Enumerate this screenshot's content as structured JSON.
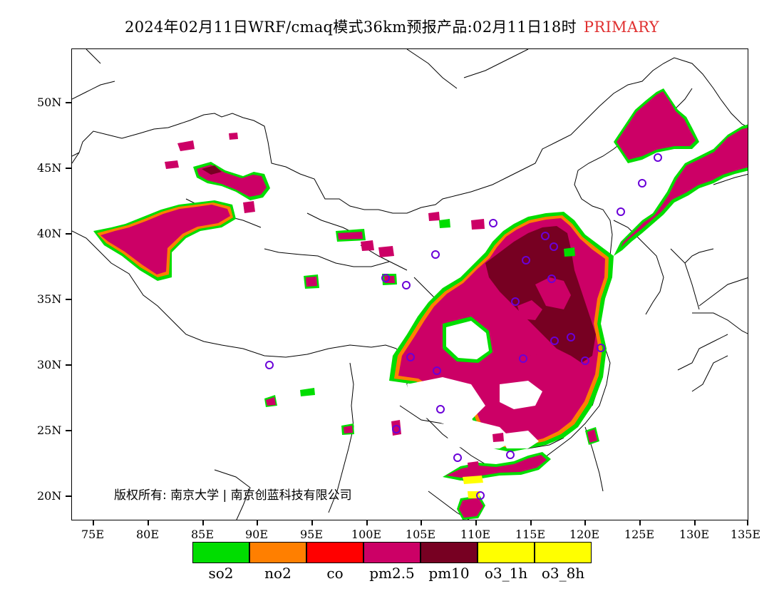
{
  "title": {
    "main": "2024年02月11日WRF/cmaq模式36km预报产品:02月11日18时",
    "tag": "PRIMARY",
    "tag_color": "#e03030"
  },
  "axes": {
    "lat_labels": [
      "50N",
      "45N",
      "40N",
      "35N",
      "30N",
      "25N",
      "20N"
    ],
    "lon_labels": [
      "75E",
      "80E",
      "85E",
      "90E",
      "95E",
      "100E",
      "105E",
      "110E",
      "115E",
      "120E",
      "125E",
      "130E",
      "135E"
    ]
  },
  "copyright": "版权所有: 南京大学 | 南京创蓝科技有限公司",
  "legend": [
    {
      "label": "so2",
      "color": "#00dd00"
    },
    {
      "label": "no2",
      "color": "#ff7f00"
    },
    {
      "label": "co",
      "color": "#ff0000"
    },
    {
      "label": "pm2.5",
      "color": "#cc0066"
    },
    {
      "label": "pm10",
      "color": "#770022"
    },
    {
      "label": "o3_1h",
      "color": "#ffff00"
    },
    {
      "label": "o3_8h",
      "color": "#ffff00"
    }
  ]
}
